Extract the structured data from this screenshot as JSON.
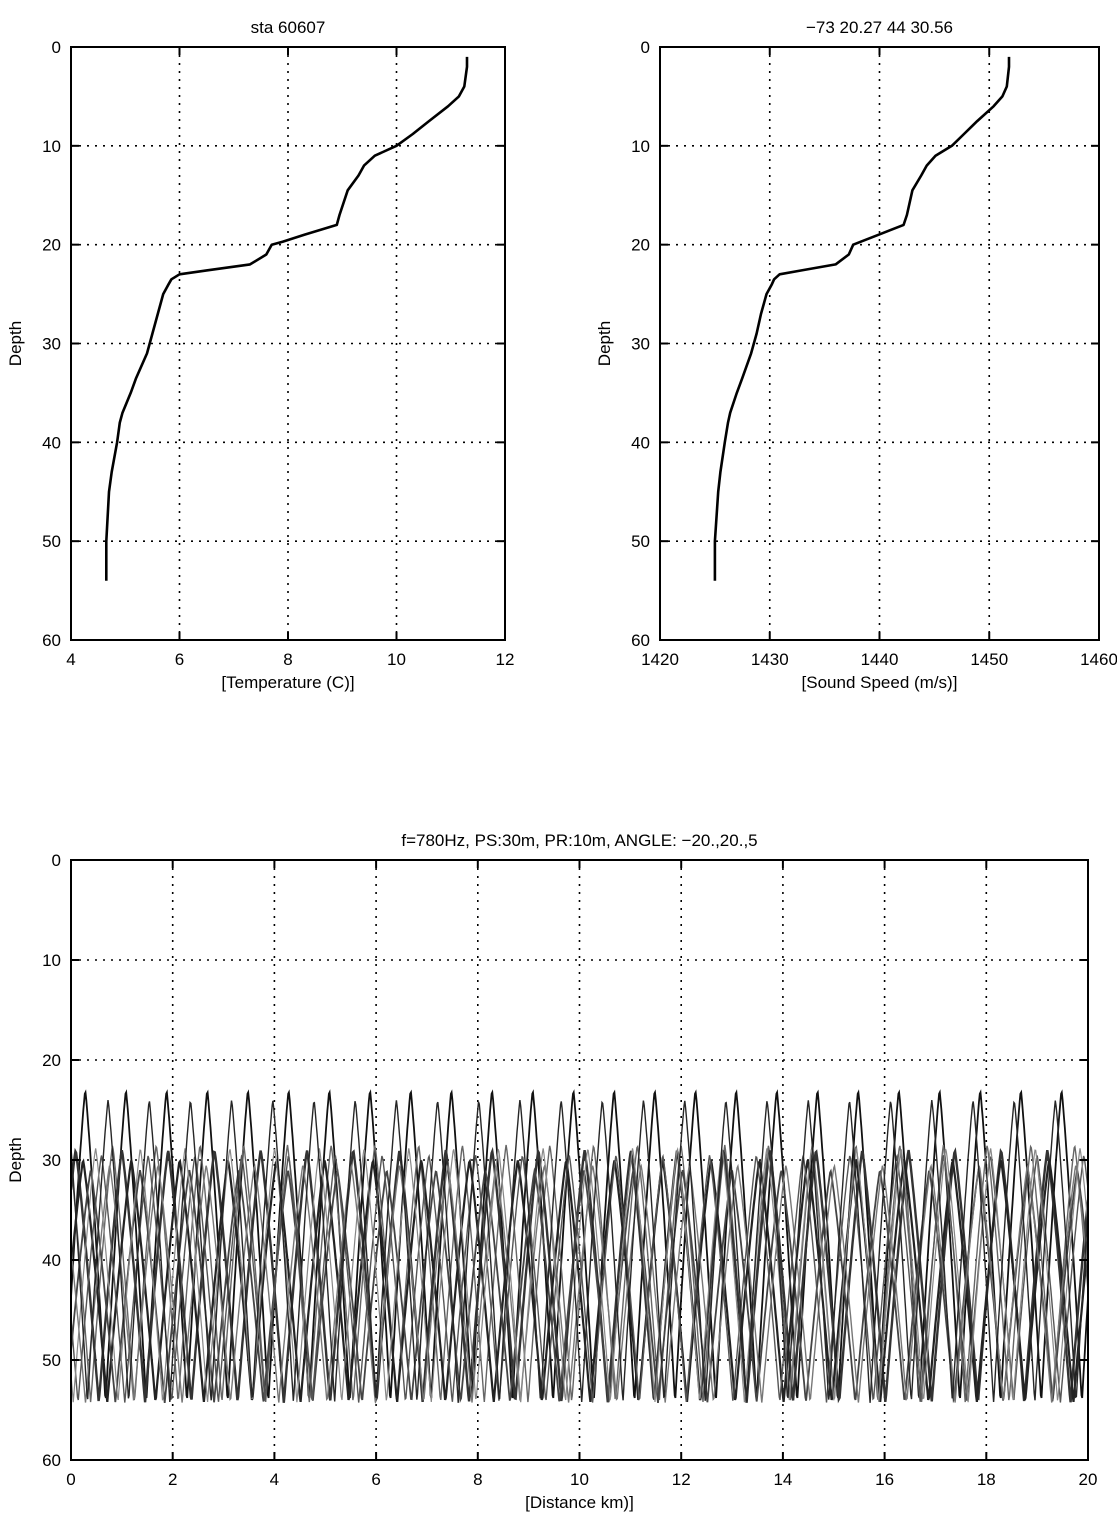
{
  "chart_data": [
    {
      "type": "line",
      "title": "sta 60607",
      "xlabel": "[Temperature (C)]",
      "ylabel": "Depth",
      "xlim": [
        4,
        12
      ],
      "ylim": [
        0,
        60
      ],
      "y_reversed": true,
      "grid": true,
      "xticks": [
        4,
        6,
        8,
        10,
        12
      ],
      "yticks": [
        0,
        10,
        20,
        30,
        40,
        50,
        60
      ],
      "series": [
        {
          "x": [
            11.3,
            11.3,
            11.25,
            11.15,
            10.95,
            10.6,
            10.3,
            10.0,
            9.6,
            9.4,
            9.3,
            9.1,
            8.95,
            8.9,
            8.3,
            7.9,
            7.7,
            7.6,
            7.3,
            6.5,
            6.0,
            5.85,
            5.8,
            5.7,
            5.6,
            5.5,
            5.4,
            5.2,
            5.1,
            4.95,
            4.9,
            4.85,
            4.75,
            4.7,
            4.65,
            4.65
          ],
          "y": [
            1,
            2,
            4,
            5,
            6,
            7.5,
            8.8,
            10,
            11,
            12,
            13,
            14.5,
            17,
            18,
            19,
            19.7,
            20,
            21,
            22,
            22.6,
            23,
            23.5,
            24,
            25,
            27,
            29,
            31,
            33.5,
            35,
            37,
            38,
            40,
            43,
            45,
            50,
            54
          ]
        }
      ]
    },
    {
      "type": "line",
      "title": "−73 20.27   44 30.56",
      "xlabel": "[Sound Speed (m/s)]",
      "ylabel": "Depth",
      "xlim": [
        1420,
        1460
      ],
      "ylim": [
        0,
        60
      ],
      "y_reversed": true,
      "grid": true,
      "xticks": [
        1420,
        1430,
        1440,
        1450,
        1460
      ],
      "yticks": [
        0,
        10,
        20,
        30,
        40,
        50,
        60
      ],
      "series": [
        {
          "x": [
            1451.8,
            1451.8,
            1451.6,
            1451.2,
            1450.4,
            1448.9,
            1447.7,
            1446.6,
            1445.1,
            1444.3,
            1443.8,
            1443.0,
            1442.5,
            1442.2,
            1439.9,
            1438.3,
            1437.6,
            1437.2,
            1436.0,
            1432.9,
            1430.9,
            1430.4,
            1430.2,
            1429.7,
            1429.2,
            1428.8,
            1428.3,
            1427.5,
            1427.0,
            1426.4,
            1426.2,
            1425.9,
            1425.5,
            1425.3,
            1425.0,
            1425.0
          ],
          "y": [
            1,
            2,
            4,
            5,
            6,
            7.5,
            8.8,
            10,
            11,
            12,
            13,
            14.5,
            17,
            18,
            19,
            19.7,
            20,
            21,
            22,
            22.6,
            23,
            23.5,
            24,
            25,
            27,
            29,
            31,
            33.5,
            35,
            37,
            38,
            40,
            43,
            45,
            50,
            54
          ]
        }
      ]
    },
    {
      "type": "line",
      "title": "f=780Hz, PS:30m, PR:10m, ANGLE: −20.,20.,5",
      "xlabel": "[Distance km)]",
      "ylabel": "Depth",
      "xlim": [
        0,
        20
      ],
      "ylim": [
        0,
        60
      ],
      "y_reversed": true,
      "grid": true,
      "xticks": [
        0,
        2,
        4,
        6,
        8,
        10,
        12,
        14,
        16,
        18,
        20
      ],
      "yticks": [
        0,
        10,
        20,
        30,
        40,
        50,
        60
      ],
      "ray_fan": {
        "source_depth": 30,
        "bottom_depth": 54.3,
        "rays": [
          {
            "angle": -20,
            "upper_turn": 23.0,
            "cycle_km": 0.8,
            "phase": 0.15,
            "color": "#111111",
            "width": 1.8
          },
          {
            "angle": -15,
            "upper_turn": 28.5,
            "cycle_km": 0.86,
            "phase": 0.55,
            "color": "#666666",
            "width": 1.4
          },
          {
            "angle": -10,
            "upper_turn": 29.0,
            "cycle_km": 0.91,
            "phase": 0.4,
            "color": "#333333",
            "width": 2.4
          },
          {
            "angle": -5,
            "upper_turn": 30.0,
            "cycle_km": 0.95,
            "phase": 0.25,
            "color": "#222222",
            "width": 2.2
          },
          {
            "angle": 0,
            "upper_turn": 31.0,
            "cycle_km": 0.97,
            "phase": 0.1,
            "color": "#444444",
            "width": 1.8
          },
          {
            "angle": 5,
            "upper_turn": 30.5,
            "cycle_km": 0.95,
            "phase": 0.7,
            "color": "#777777",
            "width": 1.4
          },
          {
            "angle": 10,
            "upper_turn": 29.5,
            "cycle_km": 0.92,
            "phase": 0.85,
            "color": "#555555",
            "width": 1.4
          },
          {
            "angle": 15,
            "upper_turn": 28.8,
            "cycle_km": 0.88,
            "phase": 0.95,
            "color": "#888888",
            "width": 1.2
          },
          {
            "angle": 20,
            "upper_turn": 24.0,
            "cycle_km": 0.81,
            "phase": 0.6,
            "color": "#262626",
            "width": 1.4
          }
        ]
      }
    }
  ]
}
